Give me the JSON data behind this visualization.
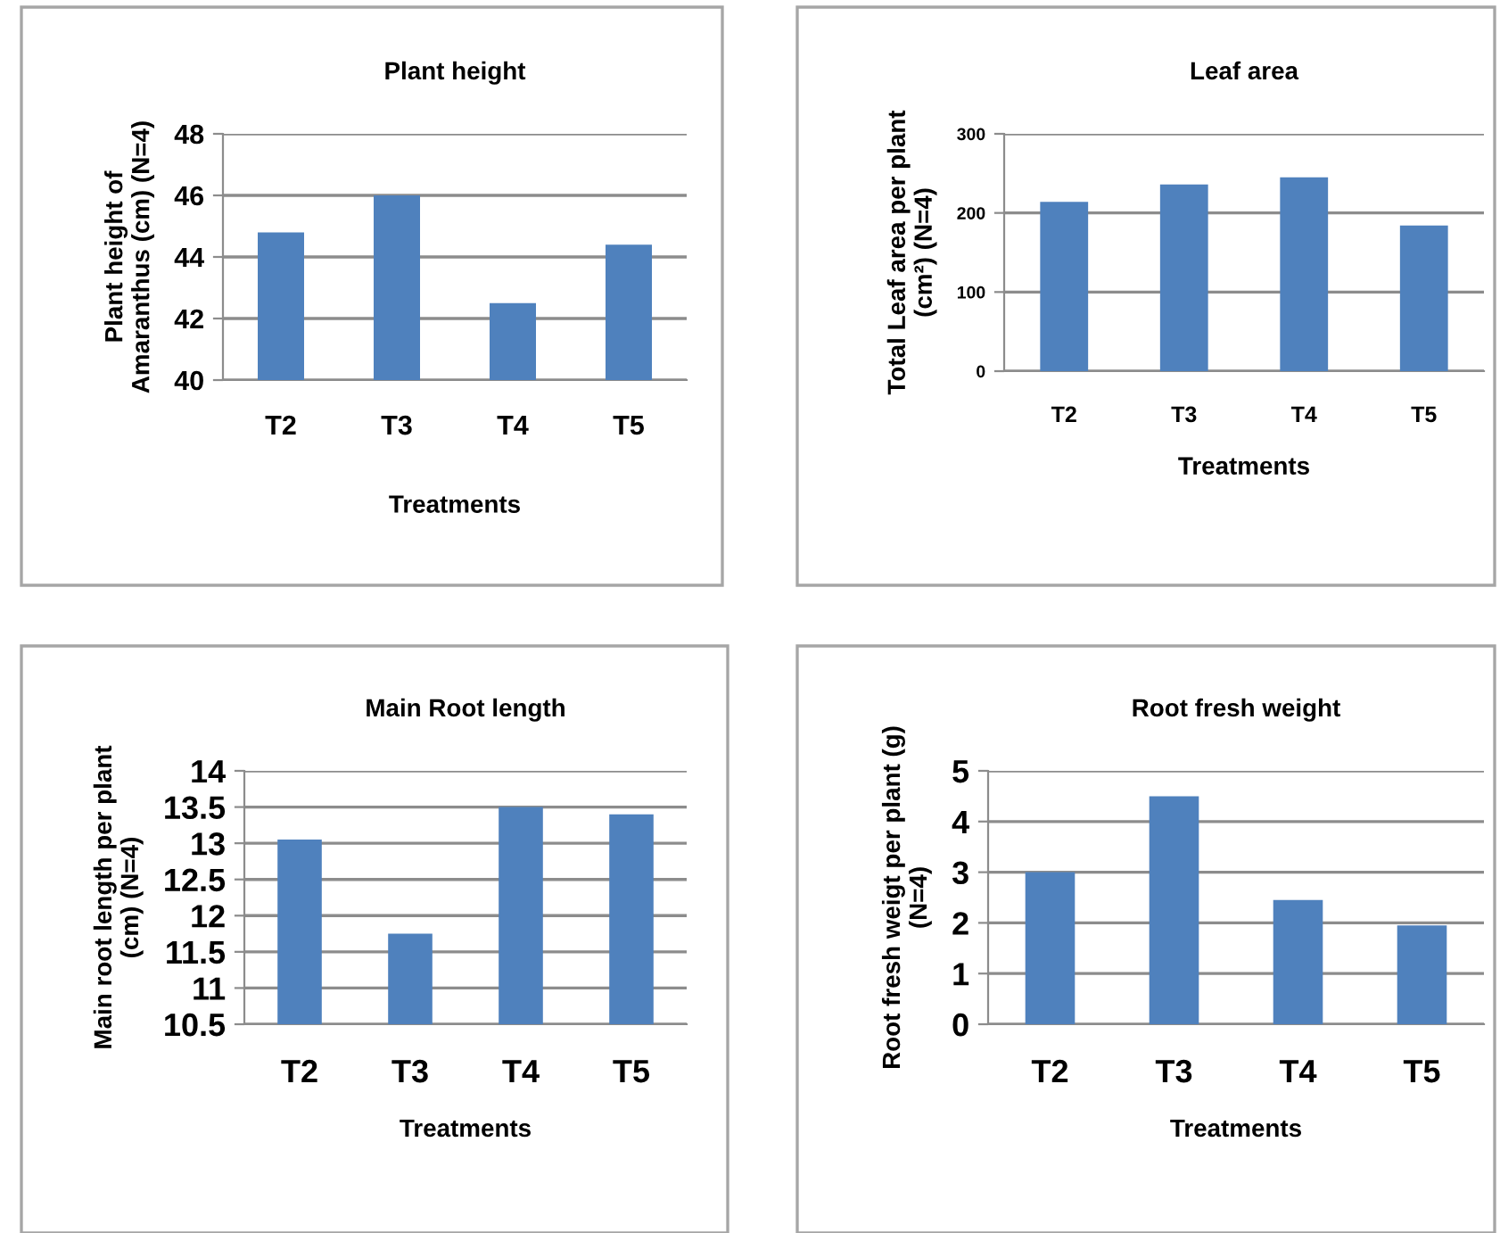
{
  "chart_data": [
    {
      "type": "bar",
      "title": "Plant height",
      "xlabel": "Treatments",
      "ylabel": "Plant height of\nAmaranthus (cm) (N=4)",
      "categories": [
        "T2",
        "T3",
        "T4",
        "T5"
      ],
      "values": [
        44.8,
        46.0,
        42.5,
        44.4
      ],
      "color": "#4f81bd",
      "ylim": [
        40,
        48
      ],
      "yticks": [
        40,
        42,
        44,
        46,
        48
      ],
      "grid": "y"
    },
    {
      "type": "bar",
      "title": "Leaf area",
      "xlabel": "Treatments",
      "ylabel": "Total Leaf area per plant\n(cm²) (N=4)",
      "categories": [
        "T2",
        "T3",
        "T4",
        "T5"
      ],
      "values": [
        214,
        236,
        245,
        184
      ],
      "color": "#4f81bd",
      "ylim": [
        0,
        300
      ],
      "yticks": [
        0,
        100,
        200,
        300
      ],
      "grid": "y"
    },
    {
      "type": "bar",
      "title": "Main Root length",
      "xlabel": "Treatments",
      "ylabel": "Main root length per plant\n(cm) (N=4)",
      "categories": [
        "T2",
        "T3",
        "T4",
        "T5"
      ],
      "values": [
        13.05,
        11.75,
        13.5,
        13.4
      ],
      "color": "#4f81bd",
      "ylim": [
        10.5,
        14
      ],
      "yticks": [
        10.5,
        11,
        11.5,
        12,
        12.5,
        13,
        13.5,
        14
      ],
      "grid": "y"
    },
    {
      "type": "bar",
      "title": "Root fresh weight",
      "xlabel": "Treatments",
      "ylabel": "Root fresh weigt per plant (g)\n(N=4)",
      "categories": [
        "T2",
        "T3",
        "T4",
        "T5"
      ],
      "values": [
        3.0,
        4.5,
        2.45,
        1.95
      ],
      "color": "#4f81bd",
      "ylim": [
        0,
        5
      ],
      "yticks": [
        0,
        1,
        2,
        3,
        4,
        5
      ],
      "grid": "y"
    }
  ]
}
